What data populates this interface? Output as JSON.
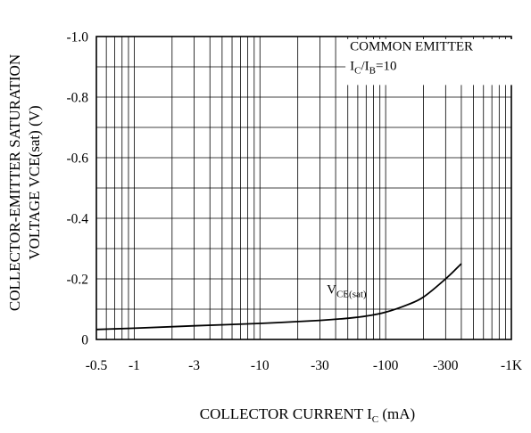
{
  "chart_data": {
    "type": "line",
    "x_scale": "log",
    "xlim": [
      -0.5,
      -1000
    ],
    "ylim": [
      0,
      -1.0
    ],
    "x_ticks": [
      -0.5,
      -1,
      -3,
      -10,
      -30,
      -100,
      -300,
      -1000
    ],
    "x_tick_labels": [
      "-0.5",
      "-1",
      "-3",
      "-10",
      "-30",
      "-100",
      "-300",
      "-1K"
    ],
    "y_ticks": [
      0,
      -0.2,
      -0.4,
      -0.6,
      -0.8,
      -1.0
    ],
    "y_tick_labels": [
      "0",
      "-0.2",
      "-0.4",
      "-0.6",
      "-0.8",
      "-1.0"
    ],
    "xlabel": {
      "main": "COLLECTOR CURRENT  I",
      "sub": "C",
      "unit": " (mA)"
    },
    "ylabel": {
      "line1": "COLLECTOR-EMITTER SATURATION",
      "line2": "VOLTAGE  VCE(sat) (V)"
    },
    "annotation": {
      "line1": "COMMON EMITTER",
      "line2": {
        "i1": "I",
        "s1": "C",
        "mid": "/I",
        "s2": "B",
        "tail": "=10"
      }
    },
    "grid": true,
    "series": [
      {
        "label": {
          "main": "V",
          "sub": "CE(sat)"
        },
        "x": [
          -0.5,
          -1,
          -3,
          -10,
          -30,
          -50,
          -70,
          -100,
          -150,
          -200,
          -300,
          -400
        ],
        "y": [
          -0.033,
          -0.037,
          -0.045,
          -0.053,
          -0.063,
          -0.07,
          -0.077,
          -0.09,
          -0.115,
          -0.14,
          -0.2,
          -0.25
        ]
      }
    ]
  }
}
